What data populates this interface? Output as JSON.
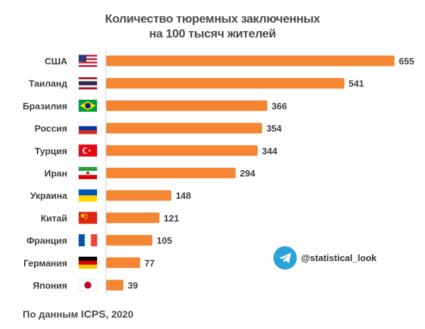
{
  "title": {
    "line1": "Количество тюремных заключенных",
    "line2": "на 100 тысяч жителей"
  },
  "chart_data": {
    "type": "bar",
    "orientation": "horizontal",
    "title": "Количество тюремных заключенных на 100 тысяч жителей",
    "categories": [
      "США",
      "Таиланд",
      "Бразилия",
      "Россия",
      "Турция",
      "Иран",
      "Украина",
      "Китай",
      "Франция",
      "Германия",
      "Япония"
    ],
    "values": [
      655,
      541,
      366,
      354,
      344,
      294,
      148,
      121,
      105,
      77,
      39
    ],
    "xlim": [
      0,
      655
    ],
    "xlabel": "",
    "ylabel": "",
    "grid": false,
    "bar_color": "#f58634"
  },
  "flags": [
    "us-flag",
    "thailand-flag",
    "brazil-flag",
    "russia-flag",
    "turkey-flag",
    "iran-flag",
    "ukraine-flag",
    "china-flag",
    "france-flag",
    "germany-flag",
    "japan-flag"
  ],
  "footer": {
    "prefix": "По данным",
    "source": "ICPS",
    "year": ", 2020"
  },
  "telegram": {
    "handle": "@statistical_look",
    "icon": "telegram-icon",
    "color": "#2aa3d8"
  }
}
